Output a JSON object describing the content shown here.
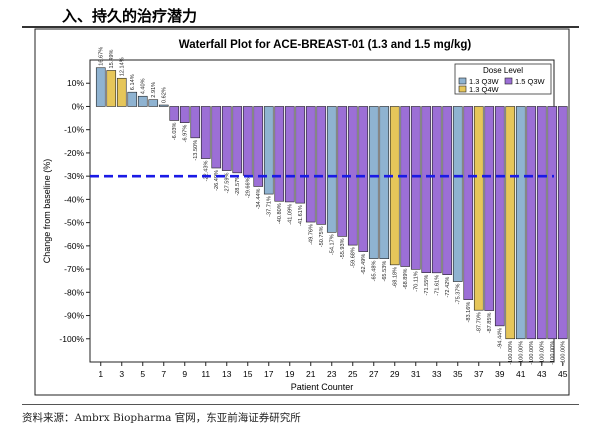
{
  "heading": "入、持久的治疗潜力",
  "source": "资料来源：Ambrx Biopharma 官网，东亚前海证券研究所",
  "chart_data": {
    "type": "bar",
    "title": "Waterfall Plot for ACE-BREAST-01 (1.3 and 1.5 mg/kg)",
    "xlabel": "Patient Counter",
    "ylabel": "Change from baseline (%)",
    "ylim": [
      -110,
      20
    ],
    "yticks": [
      10,
      0,
      -10,
      -20,
      -30,
      -40,
      -50,
      -60,
      -70,
      -80,
      -90,
      -100
    ],
    "ytick_labels": [
      "10%",
      "0%",
      "-10%",
      "-20%",
      "-30%",
      "-40%",
      "-50%",
      "-60%",
      "-70%",
      "-80%",
      "-90%",
      "-100%"
    ],
    "xticks": [
      1,
      3,
      5,
      7,
      9,
      11,
      13,
      15,
      17,
      19,
      21,
      23,
      25,
      27,
      29,
      31,
      33,
      35,
      37,
      39,
      41,
      43,
      45
    ],
    "threshold": -30,
    "legend": {
      "title": "Dose Level",
      "position": "top-right",
      "entries": [
        {
          "label": "1.3 Q3W",
          "color": "#8fb3d1",
          "key": "a"
        },
        {
          "label": "1.5 Q3W",
          "color": "#9c6fd6",
          "key": "b"
        },
        {
          "label": "1.3 Q4W",
          "color": "#e6c65a",
          "key": "c"
        }
      ]
    },
    "colors": {
      "a": "#8fb3d1",
      "b": "#9c6fd6",
      "c": "#e6c65a",
      "threshold": "#1a1ae6"
    },
    "patients": [
      1,
      2,
      3,
      4,
      5,
      6,
      7,
      8,
      9,
      10,
      11,
      12,
      13,
      14,
      15,
      16,
      17,
      18,
      19,
      20,
      21,
      22,
      23,
      24,
      25,
      26,
      27,
      28,
      29,
      30,
      31,
      32,
      33,
      34,
      35,
      36,
      37,
      38,
      39,
      40,
      41,
      42,
      43,
      44,
      45
    ],
    "values": [
      16.67,
      15.49,
      12.14,
      6.14,
      4.4,
      2.91,
      0.62,
      -6.03,
      -6.97,
      -13.5,
      -22.43,
      -26.49,
      -27.59,
      -28.57,
      -29.66,
      -34.44,
      -37.71,
      -40.8,
      -41.09,
      -41.61,
      -49.76,
      -50.75,
      -54.17,
      -55.93,
      -59.68,
      -62.49,
      -65.48,
      -65.53,
      -68.18,
      -68.89,
      -70.11,
      -71.55,
      -71.61,
      -72.42,
      -75.37,
      -83.16,
      -87.7,
      -87.85,
      -94.44,
      -100.0,
      -100.0,
      -100.0,
      -100.0,
      -100.0,
      -100.0
    ],
    "value_labels": [
      "16.67%",
      "15.49%",
      "12.14%",
      "6.14%",
      "4.40%",
      "2.91%",
      "0.62%",
      "-6.03%",
      "-6.97%",
      "-13.50%",
      "-22.43%",
      "-26.49%",
      "-27.59%",
      "-28.57%",
      "-29.66%",
      "-34.44%",
      "-37.71%",
      "-40.80%",
      "-41.09%",
      "-41.61%",
      "-49.76%",
      "-50.75%",
      "-54.17%",
      "-55.93%",
      "-59.68%",
      "-62.49%",
      "-65.48%",
      "-65.53%",
      "-68.18%",
      "-68.89%",
      "-70.11%",
      "-71.55%",
      "-71.61%",
      "-72.42%",
      "-75.37%",
      "-83.16%",
      "-87.70%",
      "-87.85%",
      "-94.44%",
      "-100.00%",
      "-100.00%",
      "-100.00%",
      "-100.00%",
      "-100.00%",
      "-100.00%"
    ],
    "dose": [
      "a",
      "c",
      "c",
      "a",
      "a",
      "a",
      "a",
      "b",
      "b",
      "b",
      "b",
      "b",
      "b",
      "b",
      "b",
      "b",
      "a",
      "b",
      "b",
      "b",
      "b",
      "b",
      "a",
      "b",
      "b",
      "b",
      "a",
      "a",
      "c",
      "b",
      "b",
      "b",
      "b",
      "b",
      "a",
      "b",
      "c",
      "b",
      "b",
      "c",
      "a",
      "b",
      "b",
      "b",
      "b"
    ]
  }
}
